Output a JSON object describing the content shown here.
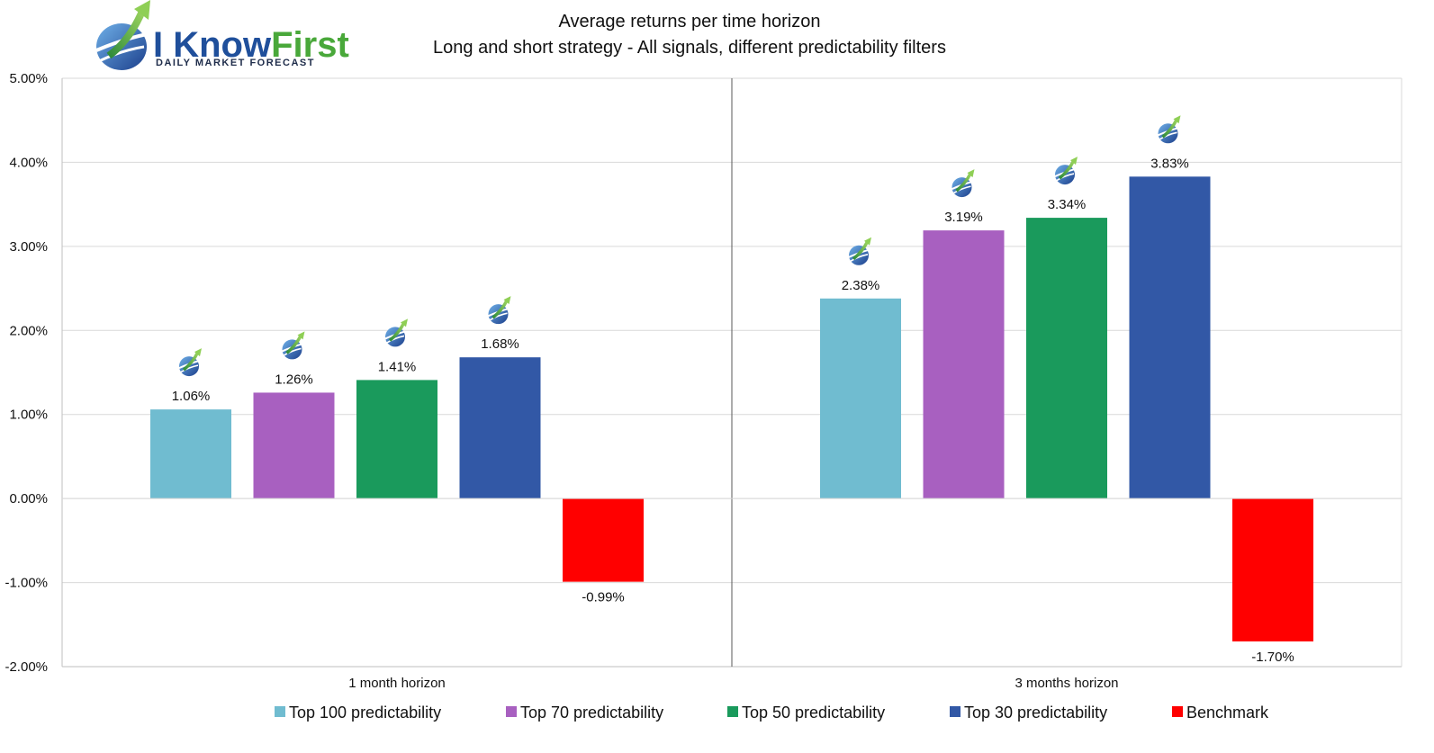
{
  "logo": {
    "part1": "I Know",
    "part2": "First",
    "tagline": "Daily Market Forecast"
  },
  "chart_data": {
    "type": "bar",
    "title": "Average returns per time horizon",
    "subtitle": "Long and short strategy - All signals, different predictability filters",
    "categories": [
      "1 month horizon",
      "3 months horizon"
    ],
    "series": [
      {
        "name": "Top 100 predictability",
        "color": "#70bcd0",
        "values": [
          1.06,
          2.38
        ],
        "labels": [
          "1.06%",
          "2.38%"
        ]
      },
      {
        "name": "Top 70 predictability",
        "color": "#a860c0",
        "values": [
          1.26,
          3.19
        ],
        "labels": [
          "1.26%",
          "3.19%"
        ]
      },
      {
        "name": "Top 50 predictability",
        "color": "#1a9a5c",
        "values": [
          1.41,
          3.34
        ],
        "labels": [
          "1.41%",
          "3.34%"
        ]
      },
      {
        "name": "Top 30 predictability",
        "color": "#3258a6",
        "values": [
          1.68,
          3.83
        ],
        "labels": [
          "1.68%",
          "3.83%"
        ]
      },
      {
        "name": "Benchmark",
        "color": "#ff0000",
        "values": [
          -0.99,
          -1.7
        ],
        "labels": [
          "-0.99%",
          "-1.70%"
        ]
      }
    ],
    "ylim": [
      -2.0,
      5.0
    ],
    "yticks": [
      5.0,
      4.0,
      3.0,
      2.0,
      1.0,
      0.0,
      -1.0,
      -2.0
    ],
    "ytick_labels": [
      "5.00%",
      "4.00%",
      "3.00%",
      "2.00%",
      "1.00%",
      "0.00%",
      "-1.00%",
      "-2.00%"
    ],
    "grid": true,
    "legend_position": "bottom",
    "marker_icon": "i-know-first-logo-icon"
  }
}
